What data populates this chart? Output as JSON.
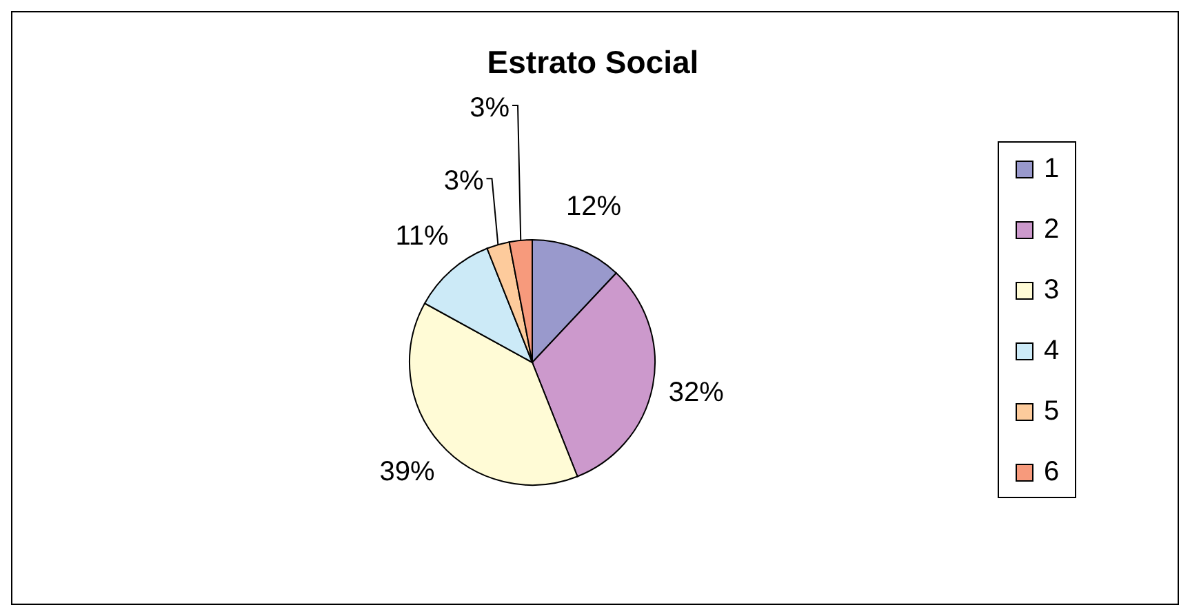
{
  "chart_data": {
    "type": "pie",
    "title": "Estrato Social",
    "categories": [
      "1",
      "2",
      "3",
      "4",
      "5",
      "6"
    ],
    "values": [
      12,
      32,
      39,
      11,
      3,
      3
    ],
    "colors": [
      "#9999cc",
      "#cc99cc",
      "#fffbd6",
      "#cceaf7",
      "#fdcb9c",
      "#f79a7c"
    ],
    "value_labels": [
      "12%",
      "32%",
      "39%",
      "11%",
      "3%",
      "3%"
    ],
    "legend": "right"
  }
}
